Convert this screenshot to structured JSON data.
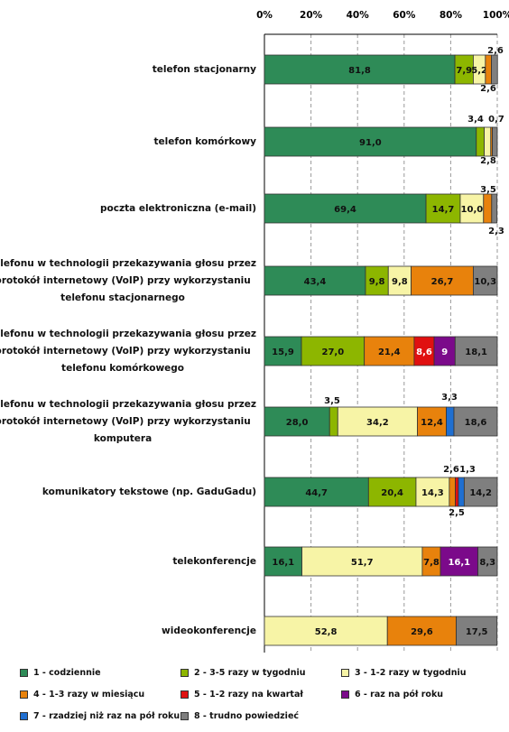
{
  "chart_data": {
    "type": "bar",
    "orientation": "horizontal",
    "stacked": true,
    "xlim": [
      0,
      100
    ],
    "ticks": [
      "0%",
      "20%",
      "40%",
      "60%",
      "80%",
      "100%"
    ],
    "grid": true,
    "legend_position": "bottom",
    "categories": [
      "telefon stacjonarny",
      "telefon komórkowy",
      "poczta elektroniczna (e-mail)",
      "telefonu w technologii przekazywania głosu przez protokół internetowy (VoIP) przy wykorzystaniu telefonu stacjonarnego",
      "telefonu w technologii przekazywania głosu przez protokół internetowy (VoIP) przy wykorzystaniu telefonu komórkowego",
      "telefonu w technologii przekazywania głosu przez protokół internetowy (VoIP) przy wykorzystaniu komputera",
      "komunikatory tekstowe (np. GaduGadu)",
      "telekonferencje",
      "wideokonferencje"
    ],
    "category_lines": [
      [
        "telefon stacjonarny"
      ],
      [
        "telefon komórkowy"
      ],
      [
        "poczta elektroniczna (e-mail)"
      ],
      [
        "telefonu w technologii przekazywania głosu przez",
        "protokół internetowy (VoIP) przy wykorzystaniu",
        "telefonu stacjonarnego"
      ],
      [
        "telefonu w technologii przekazywania głosu przez",
        "protokół internetowy (VoIP) przy wykorzystaniu",
        "telefonu komórkowego"
      ],
      [
        "telefonu w technologii przekazywania głosu przez",
        "protokół internetowy (VoIP) przy wykorzystaniu",
        "komputera"
      ],
      [
        "komunikatory tekstowe (np. GaduGadu)"
      ],
      [
        "telekonferencje"
      ],
      [
        "wideokonferencje"
      ]
    ],
    "series": [
      {
        "name": "1 - codziennie",
        "color": "#2e8b57",
        "values": [
          81.8,
          91.0,
          69.4,
          43.4,
          15.9,
          28.0,
          44.7,
          16.1,
          0
        ],
        "labels": [
          "81,8",
          "91,0",
          "69,4",
          "43,4",
          "15,9",
          "28,0",
          "44,7",
          "16,1",
          ""
        ]
      },
      {
        "name": "2 - 3-5 razy w tygodniu",
        "color": "#8db600",
        "values": [
          7.9,
          3.4,
          14.7,
          9.8,
          27.0,
          3.5,
          20.4,
          0,
          0
        ],
        "labels": [
          "7,9",
          "3,4",
          "14,7",
          "9,8",
          "27,0",
          "3,5",
          "20,4",
          "",
          ""
        ]
      },
      {
        "name": "3 - 1-2 razy w tygodniu",
        "color": "#f7f4a6",
        "values": [
          5.2,
          2.8,
          10.0,
          9.8,
          0,
          34.2,
          14.3,
          51.7,
          52.8
        ],
        "labels": [
          "5,2",
          "2,8",
          "10,0",
          "9,8",
          "",
          "34,2",
          "14,3",
          "51,7",
          "52,8"
        ]
      },
      {
        "name": "4 - 1-3 razy w miesiącu",
        "color": "#e8820c",
        "values": [
          2.6,
          0.7,
          3.5,
          26.7,
          21.4,
          12.4,
          2.6,
          7.8,
          29.6
        ],
        "labels": [
          "2,6",
          "0,7",
          "3,5",
          "26,7",
          "21,4",
          "12,4",
          "2,6",
          "7,8",
          "29,6"
        ]
      },
      {
        "name": "5 - 1-2 razy na kwartał",
        "color": "#e01010",
        "values": [
          0,
          0,
          0,
          0,
          8.6,
          0,
          1.3,
          0,
          0
        ],
        "labels": [
          "",
          "",
          "",
          "",
          "8,6",
          "",
          "1,3",
          "",
          ""
        ]
      },
      {
        "name": "6 - raz na pół roku",
        "color": "#7b0a8a",
        "values": [
          0,
          0,
          0,
          0,
          9,
          0,
          0,
          16.1,
          0
        ],
        "labels": [
          "",
          "",
          "",
          "",
          "9",
          "",
          "",
          "16,1",
          ""
        ]
      },
      {
        "name": "7 - rzadziej niż raz na pół roku",
        "color": "#1f6fd1",
        "values": [
          0,
          0,
          0,
          0,
          0,
          3.3,
          2.5,
          0,
          0
        ],
        "labels": [
          "",
          "",
          "",
          "",
          "",
          "3,3",
          "2,5",
          "",
          ""
        ]
      },
      {
        "name": "8 - trudno powiedzieć",
        "color": "#7f7f7f",
        "values": [
          2.6,
          2.1,
          2.3,
          10.3,
          18.1,
          18.6,
          14.2,
          8.3,
          17.5
        ],
        "labels": [
          "2,6",
          "2,1",
          "2,3",
          "10,3",
          "18,1",
          "18,6",
          "14,2",
          "8,3",
          "17,5"
        ]
      }
    ]
  }
}
